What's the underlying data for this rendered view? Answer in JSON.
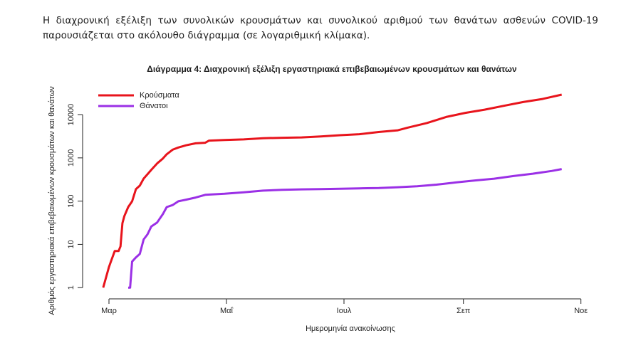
{
  "intro": "Η διαχρονική εξέλιξη των συνολικών κρουσμάτων και συνολικού αριθμού των θανάτων ασθενών COVID-19 παρουσιάζεται στο ακόλουθο διάγραμμα (σε λογαριθμική κλίμακα).",
  "chart_data": {
    "type": "line",
    "title": "Διάγραμμα 4: Διαχρονική εξέλιξη εργαστηριακά επιβεβαιωμένων κρουσμάτων και θανάτων",
    "xlabel": "Ημερομηνία ανακοίνωσης",
    "ylabel": "Αριθμός εργαστηριακά επιβεβαιωμένων κρουσμάτων και θανάτων",
    "log_y": true,
    "legend": "top-left",
    "xlim": [
      -8.5,
      244
    ],
    "ylim": [
      0.55,
      35000
    ],
    "xticks": [
      {
        "value": 0,
        "label": "Μαρ"
      },
      {
        "value": 61,
        "label": "Μαΐ"
      },
      {
        "value": 122,
        "label": "Ιουλ"
      },
      {
        "value": 184,
        "label": "Σεπ"
      },
      {
        "value": 245,
        "label": "Νοε"
      }
    ],
    "yticks": [
      1,
      10,
      100,
      1000,
      10000
    ],
    "series": [
      {
        "name": "Κρούσματα",
        "color": "#e8141c",
        "x": [
          -3,
          0,
          1,
          3,
          5,
          6,
          7,
          8,
          10,
          12,
          14,
          16,
          18,
          20,
          22,
          25,
          28,
          30,
          33,
          36,
          40,
          45,
          50,
          52,
          60,
          70,
          80,
          90,
          100,
          110,
          120,
          130,
          140,
          150,
          155,
          165,
          175,
          185,
          195,
          205,
          215,
          225,
          235
        ],
        "values": [
          1,
          3,
          4,
          7,
          7,
          9,
          31,
          45,
          73,
          99,
          190,
          228,
          331,
          418,
          530,
          743,
          966,
          1212,
          1544,
          1735,
          1955,
          2170,
          2235,
          2506,
          2591,
          2678,
          2852,
          2915,
          2967,
          3121,
          3343,
          3519,
          3964,
          4336,
          5000,
          6400,
          8800,
          11000,
          13000,
          16000,
          19500,
          23000,
          29000
        ]
      },
      {
        "name": "Θάνατοι",
        "color": "#9b30e6",
        "x": [
          10,
          11,
          12,
          14,
          16,
          18,
          20,
          22,
          25,
          28,
          30,
          33,
          36,
          40,
          45,
          50,
          60,
          70,
          80,
          90,
          100,
          110,
          120,
          130,
          140,
          150,
          160,
          170,
          180,
          190,
          200,
          210,
          220,
          230,
          235
        ],
        "values": [
          1,
          1,
          4,
          5,
          6,
          13,
          17,
          26,
          32,
          50,
          73,
          81,
          99,
          108,
          121,
          140,
          148,
          160,
          175,
          183,
          187,
          190,
          193,
          197,
          200,
          210,
          220,
          240,
          270,
          300,
          330,
          380,
          430,
          500,
          550
        ]
      }
    ]
  }
}
